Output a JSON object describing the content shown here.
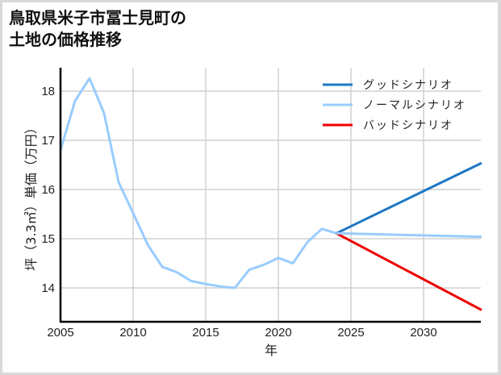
{
  "title_line1": "鳥取県米子市冨士見町の",
  "title_line2": "土地の価格推移",
  "chart_data": {
    "type": "line",
    "title": "鳥取県米子市冨士見町の土地の価格推移",
    "xlabel": "年",
    "ylabel": "坪（3.3㎡）単価（万円）",
    "xlim": [
      2005,
      2034
    ],
    "ylim": [
      13.3,
      18.55
    ],
    "xticks": [
      2005,
      2010,
      2015,
      2020,
      2025,
      2030
    ],
    "yticks": [
      14,
      15,
      16,
      17,
      18
    ],
    "grid": true,
    "legend_position": "upper right",
    "historical": {
      "x": [
        2005,
        2006,
        2007,
        2008,
        2009,
        2010,
        2011,
        2012,
        2013,
        2014,
        2015,
        2016,
        2017,
        2018,
        2019,
        2020,
        2021,
        2022,
        2023,
        2024
      ],
      "values": [
        16.8,
        17.8,
        18.26,
        17.55,
        16.15,
        15.52,
        14.88,
        14.43,
        14.32,
        14.14,
        14.08,
        14.03,
        14.0,
        14.37,
        14.47,
        14.61,
        14.5,
        14.93,
        15.2,
        15.11
      ]
    },
    "series": [
      {
        "name": "グッドシナリオ",
        "color": "#1f77c4",
        "x": [
          2024,
          2034
        ],
        "values": [
          15.11,
          16.54
        ]
      },
      {
        "name": "ノーマルシナリオ",
        "color": "#99ccff",
        "x": [
          2024,
          2034
        ],
        "values": [
          15.11,
          15.04
        ]
      },
      {
        "name": "バッドシナリオ",
        "color": "#ee0000",
        "x": [
          2024,
          2034
        ],
        "values": [
          15.11,
          13.55
        ]
      }
    ],
    "historical_color": "#99ccff"
  }
}
